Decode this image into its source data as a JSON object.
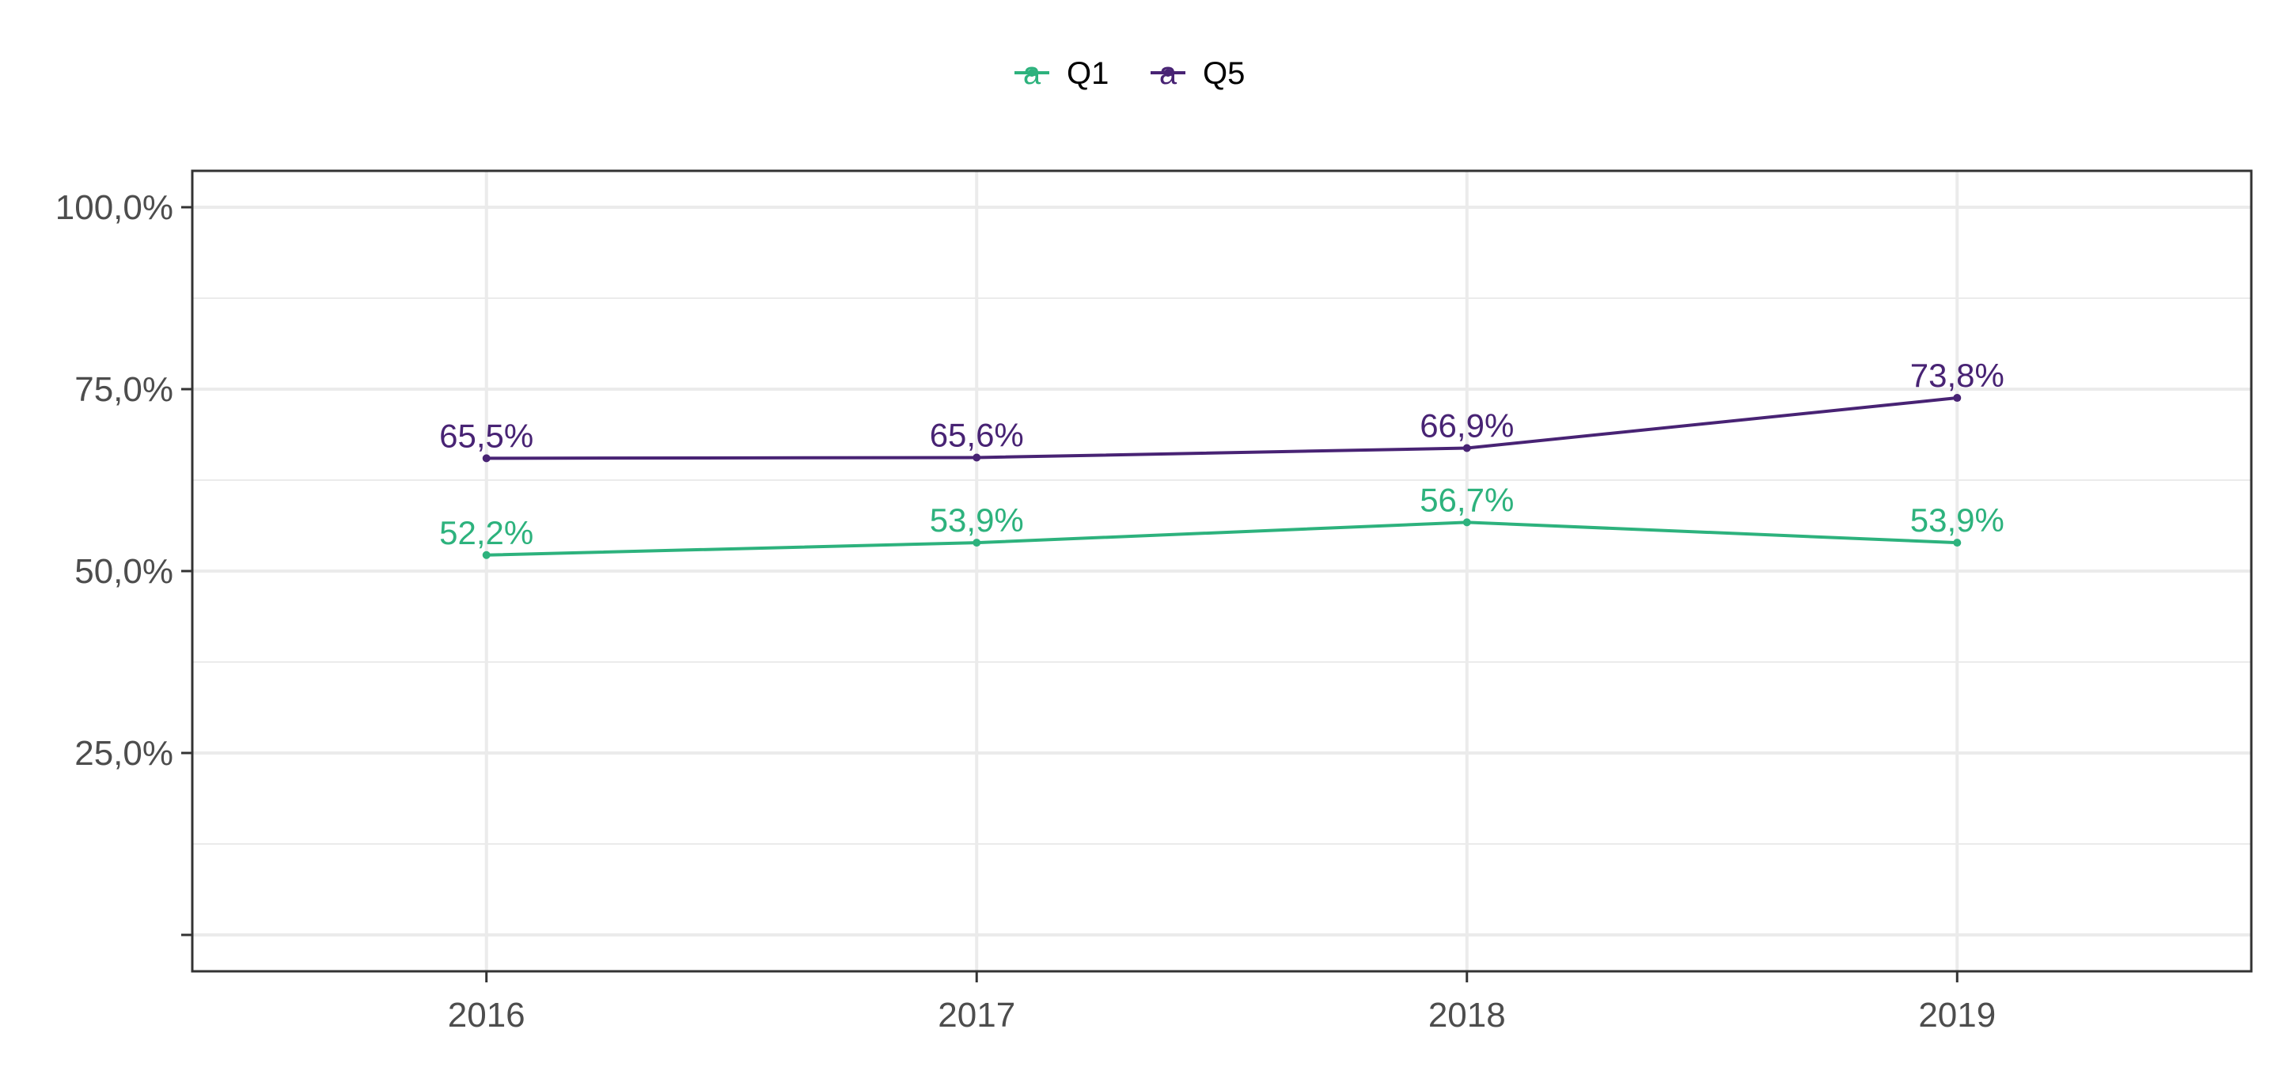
{
  "chart_data": {
    "type": "line",
    "x": [
      "2016",
      "2017",
      "2018",
      "2019"
    ],
    "series": [
      {
        "name": "Q1",
        "color": "#2db27d",
        "values": [
          52.2,
          53.9,
          56.7,
          53.9
        ],
        "labels": [
          "52,2%",
          "53,9%",
          "56,7%",
          "53,9%"
        ]
      },
      {
        "name": "Q5",
        "color": "#482374",
        "values": [
          65.5,
          65.6,
          66.9,
          73.8
        ],
        "labels": [
          "65,5%",
          "65,6%",
          "66,9%",
          "73,8%"
        ]
      }
    ],
    "y_ticks": [
      0,
      25,
      50,
      75,
      100
    ],
    "y_tick_labels": [
      "",
      "25,0%",
      "50,0%",
      "75,0%",
      "100,0%"
    ],
    "ylim": [
      -5,
      105
    ],
    "xlim": [
      2015.4,
      2019.6
    ],
    "xlabel": "",
    "ylabel": "",
    "grid": true,
    "legend_position": "top",
    "legend_glyph": "a"
  }
}
